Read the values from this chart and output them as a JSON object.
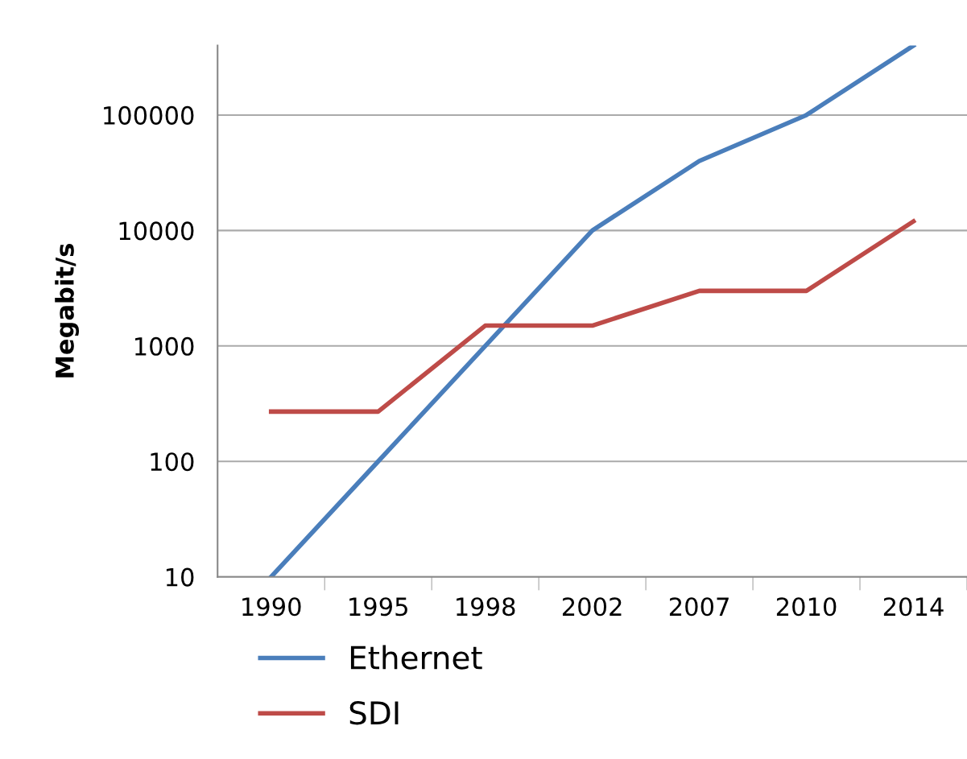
{
  "chart_data": {
    "type": "line",
    "ylabel": "Megabit/s",
    "categories": [
      "1990",
      "1995",
      "1998",
      "2002",
      "2007",
      "2010",
      "2014"
    ],
    "series": [
      {
        "name": "Ethernet",
        "color": "#4a7ebb",
        "values": [
          10,
          100,
          1000,
          10000,
          40000,
          100000,
          400000
        ]
      },
      {
        "name": "SDI",
        "color": "#be4b48",
        "values": [
          270,
          270,
          1500,
          1500,
          3000,
          3000,
          12000
        ]
      }
    ],
    "log": "y",
    "ylim": [
      10,
      400000
    ],
    "yticks": [
      10,
      100,
      1000,
      10000,
      100000
    ],
    "grid": "y",
    "legend": "bottom left",
    "marker": "none",
    "line_style": "solid"
  }
}
